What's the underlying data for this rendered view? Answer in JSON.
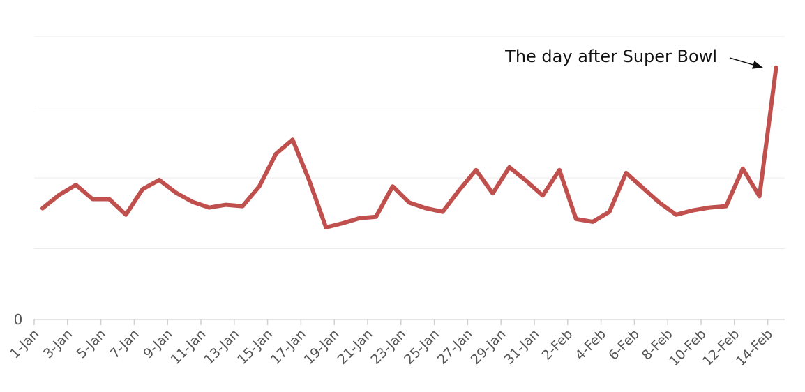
{
  "chart_data": {
    "type": "line",
    "title": "",
    "xlabel": "",
    "ylabel": "",
    "grid": true,
    "y_ticks": [
      {
        "value": 0,
        "label": "0"
      },
      {
        "value": 1,
        "label": ""
      },
      {
        "value": 2,
        "label": ""
      },
      {
        "value": 3,
        "label": ""
      },
      {
        "value": 4,
        "label": ""
      }
    ],
    "ylim": [
      0,
      4
    ],
    "x": [
      "1-Jan",
      "2-Jan",
      "3-Jan",
      "4-Jan",
      "5-Jan",
      "6-Jan",
      "7-Jan",
      "8-Jan",
      "9-Jan",
      "10-Jan",
      "11-Jan",
      "12-Jan",
      "13-Jan",
      "14-Jan",
      "15-Jan",
      "16-Jan",
      "17-Jan",
      "18-Jan",
      "19-Jan",
      "20-Jan",
      "21-Jan",
      "22-Jan",
      "23-Jan",
      "24-Jan",
      "25-Jan",
      "26-Jan",
      "27-Jan",
      "28-Jan",
      "29-Jan",
      "30-Jan",
      "31-Jan",
      "1-Feb",
      "2-Feb",
      "3-Feb",
      "4-Feb",
      "5-Feb",
      "6-Feb",
      "7-Feb",
      "8-Feb",
      "9-Feb",
      "10-Feb",
      "11-Feb",
      "12-Feb",
      "13-Feb",
      "14-Feb"
    ],
    "x_tick_labels": [
      "1-Jan",
      "3-Jan",
      "5-Jan",
      "7-Jan",
      "9-Jan",
      "11-Jan",
      "13-Jan",
      "15-Jan",
      "17-Jan",
      "19-Jan",
      "21-Jan",
      "23-Jan",
      "25-Jan",
      "27-Jan",
      "29-Jan",
      "31-Jan",
      "2-Feb",
      "4-Feb",
      "6-Feb",
      "8-Feb",
      "10-Feb",
      "12-Feb",
      "14-Feb"
    ],
    "series": [
      {
        "color": "#c0504d",
        "values": [
          1.57,
          1.76,
          1.9,
          1.7,
          1.7,
          1.48,
          1.84,
          1.97,
          1.79,
          1.66,
          1.58,
          1.62,
          1.6,
          1.88,
          2.34,
          2.54,
          1.96,
          1.3,
          1.36,
          1.43,
          1.45,
          1.88,
          1.65,
          1.57,
          1.52,
          1.83,
          2.11,
          1.78,
          2.15,
          1.96,
          1.75,
          2.11,
          1.42,
          1.38,
          1.52,
          2.07,
          1.86,
          1.65,
          1.48,
          1.54,
          1.58,
          1.6,
          2.13,
          1.74,
          3.56
        ]
      }
    ],
    "annotations": [
      {
        "text": "The day after Super Bowl",
        "target": "14-Feb",
        "arrow": true
      }
    ]
  }
}
